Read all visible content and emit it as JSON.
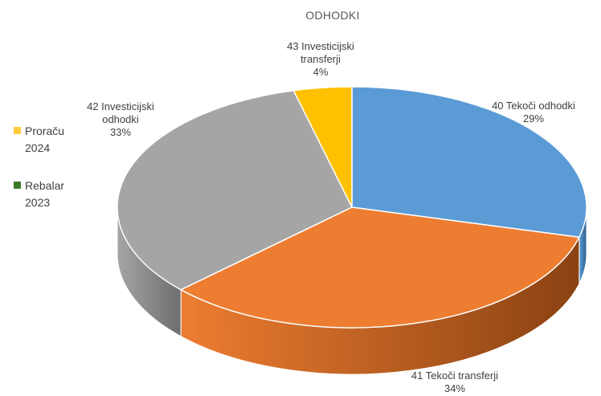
{
  "chart_data": {
    "type": "pie",
    "title": "ODHODKI",
    "slices": [
      {
        "label_lines": [
          "40 Tekoči odhodki"
        ],
        "value": 29,
        "value_label": "29%",
        "color": "#5b9bd5",
        "side_color": "#2e5f8f"
      },
      {
        "label_lines": [
          "41 Tekoči transferji"
        ],
        "value": 34,
        "value_label": "34%",
        "color": "#ed7d31",
        "side_color": "#8a4212"
      },
      {
        "label_lines": [
          "42 Investicijski",
          "odhodki"
        ],
        "value": 33,
        "value_label": "33%",
        "color": "#a5a5a5",
        "side_color": "#6e6e6e"
      },
      {
        "label_lines": [
          "43 Investicijski",
          "transferji"
        ],
        "value": 4,
        "value_label": "4%",
        "color": "#ffc000",
        "side_color": "#b88a00"
      }
    ],
    "legend": {
      "placement": "left",
      "entries": [
        {
          "lines": [
            "Proraču",
            "2024"
          ],
          "color": "#ffcc3f"
        },
        {
          "lines": [
            "Rebalar",
            "2023"
          ],
          "color": "#3d7a2e"
        }
      ]
    }
  }
}
